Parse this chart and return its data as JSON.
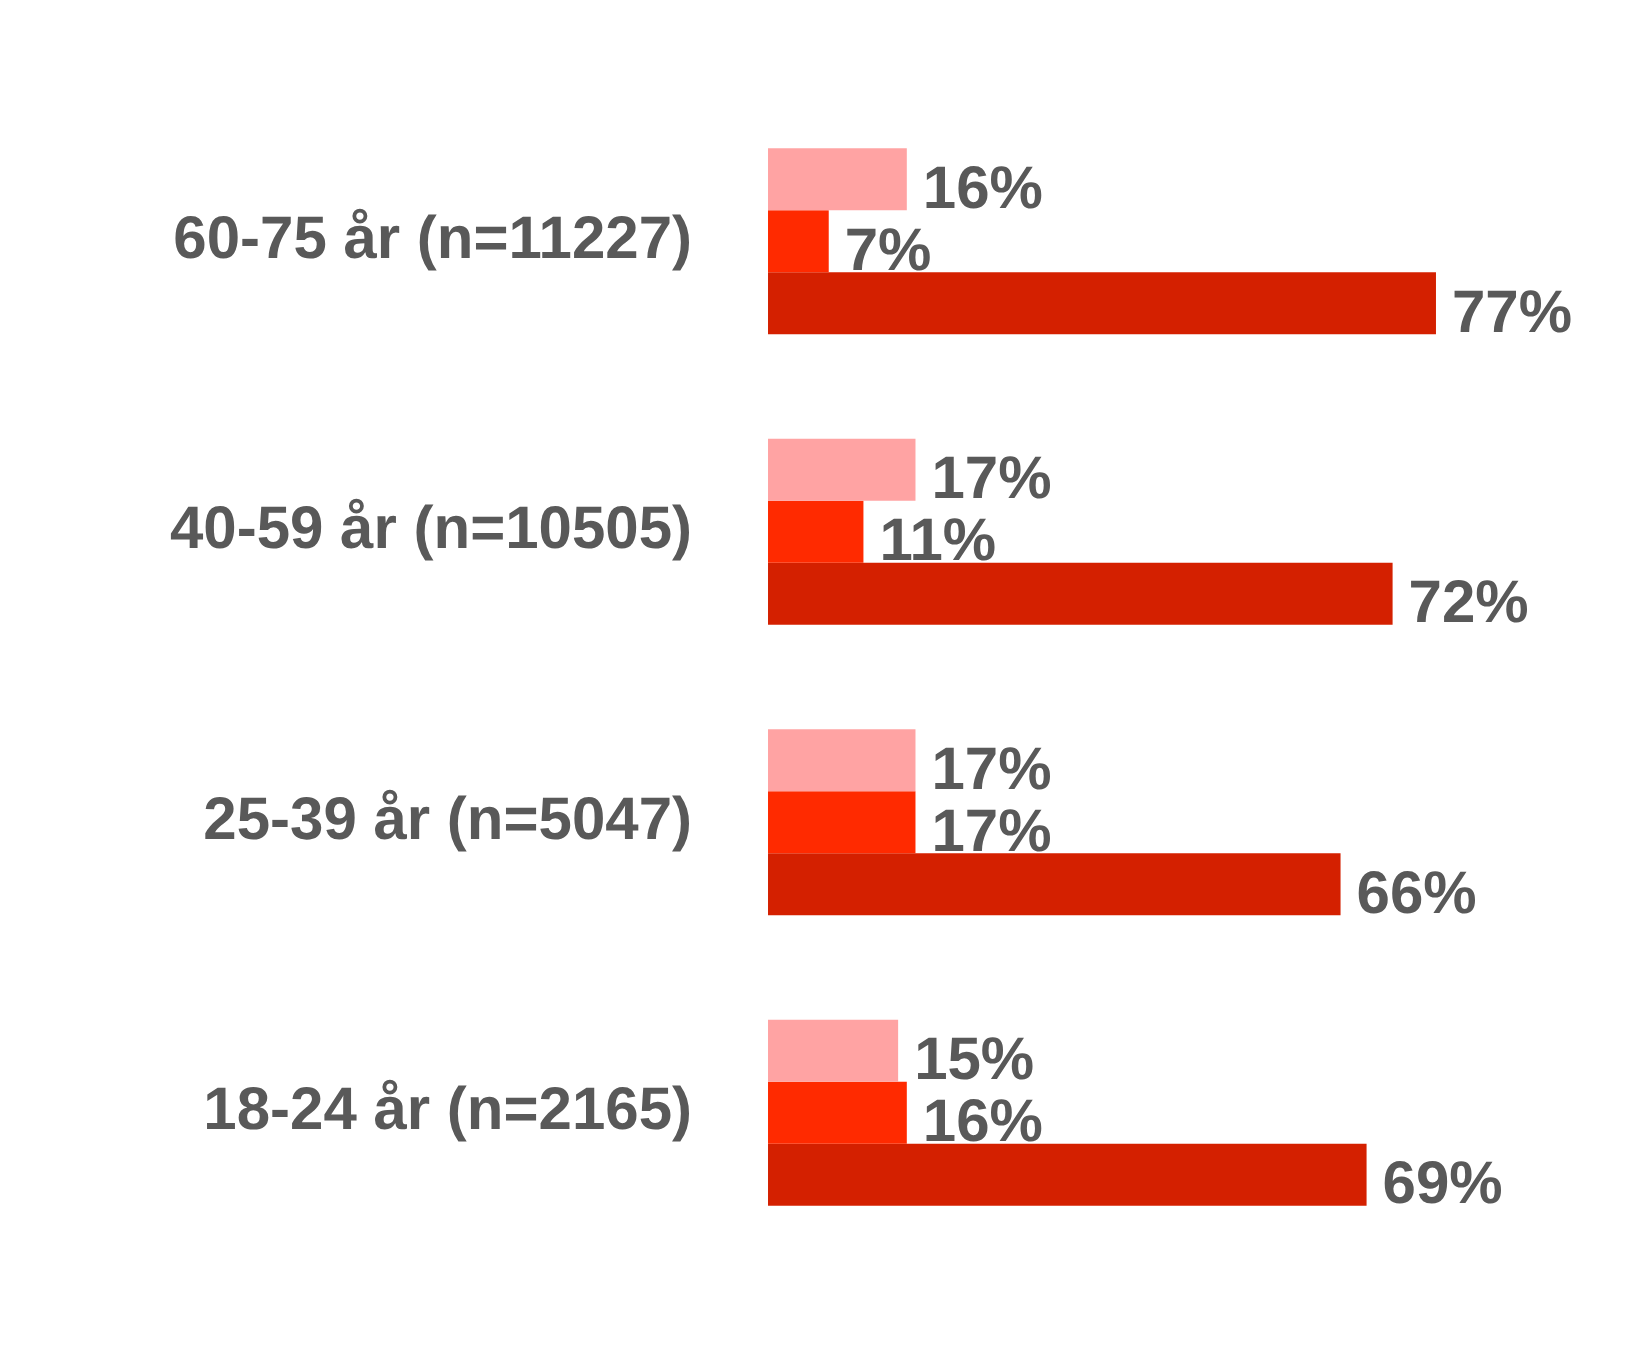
{
  "chart_data": {
    "type": "bar",
    "orientation": "horizontal",
    "categories": [
      "60-75 år (n=11227)",
      "40-59 år (n=10505)",
      "25-39 år (n=5047)",
      "18-24 år (n=2165)"
    ],
    "series": [
      {
        "color": "#ffa3a3",
        "values": [
          16,
          17,
          17,
          15
        ],
        "value_labels": [
          "16%",
          "17%",
          "17%",
          "15%"
        ]
      },
      {
        "color": "#ff2a00",
        "values": [
          7,
          11,
          17,
          16
        ],
        "value_labels": [
          "7%",
          "11%",
          "17%",
          "16%"
        ]
      },
      {
        "color": "#d42000",
        "values": [
          77,
          72,
          66,
          69
        ],
        "value_labels": [
          "77%",
          "72%",
          "66%",
          "69%"
        ]
      }
    ],
    "legend": false
  }
}
